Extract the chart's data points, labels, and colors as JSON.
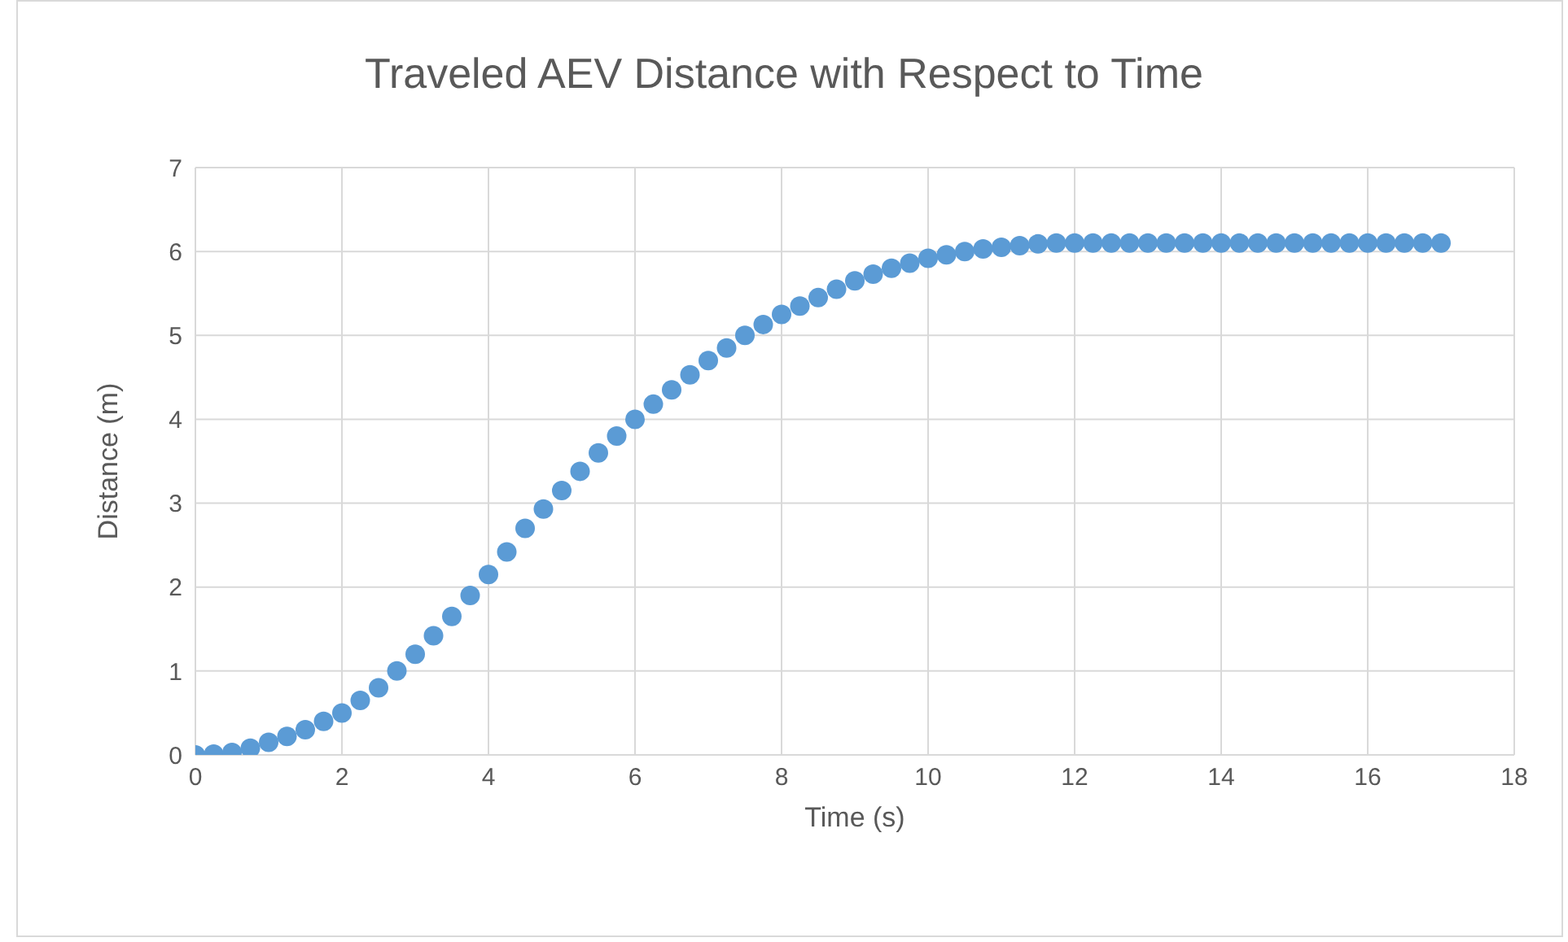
{
  "chart_data": {
    "type": "scatter",
    "title": "Traveled AEV Distance with Respect to Time",
    "xlabel": "Time (s)",
    "ylabel": "Distance (m)",
    "x": [
      0,
      0.25,
      0.5,
      0.75,
      1,
      1.25,
      1.5,
      1.75,
      2,
      2.25,
      2.5,
      2.75,
      3,
      3.25,
      3.5,
      3.75,
      4,
      4.25,
      4.5,
      4.75,
      5,
      5.25,
      5.5,
      5.75,
      6,
      6.25,
      6.5,
      6.75,
      7,
      7.25,
      7.5,
      7.75,
      8,
      8.25,
      8.5,
      8.75,
      9,
      9.25,
      9.5,
      9.75,
      10,
      10.25,
      10.5,
      10.75,
      11,
      11.25,
      11.5,
      11.75,
      12,
      12.25,
      12.5,
      12.75,
      13,
      13.25,
      13.5,
      13.75,
      14,
      14.25,
      14.5,
      14.75,
      15,
      15.25,
      15.5,
      15.75,
      16,
      16.25,
      16.5,
      16.75,
      17
    ],
    "series": [
      {
        "color": "#5b9bd5",
        "values": [
          0,
          0.01,
          0.03,
          0.08,
          0.15,
          0.22,
          0.3,
          0.4,
          0.5,
          0.65,
          0.8,
          1.0,
          1.2,
          1.42,
          1.65,
          1.9,
          2.15,
          2.42,
          2.7,
          2.93,
          3.15,
          3.38,
          3.6,
          3.8,
          4.0,
          4.18,
          4.35,
          4.53,
          4.7,
          4.85,
          5.0,
          5.13,
          5.25,
          5.35,
          5.45,
          5.55,
          5.65,
          5.73,
          5.8,
          5.86,
          5.92,
          5.96,
          6.0,
          6.03,
          6.05,
          6.07,
          6.09,
          6.1,
          6.1,
          6.1,
          6.1,
          6.1,
          6.1,
          6.1,
          6.1,
          6.1,
          6.1,
          6.1,
          6.1,
          6.1,
          6.1,
          6.1,
          6.1,
          6.1,
          6.1,
          6.1,
          6.1,
          6.1,
          6.1
        ]
      }
    ],
    "xlim": [
      0,
      18
    ],
    "xticks": [
      0,
      2,
      4,
      6,
      8,
      10,
      12,
      14,
      16,
      18
    ],
    "ylim": [
      0,
      7
    ],
    "yticks": [
      0,
      1,
      2,
      3,
      4,
      5,
      6,
      7
    ],
    "grid": true,
    "marker": "circle",
    "legend": false
  }
}
